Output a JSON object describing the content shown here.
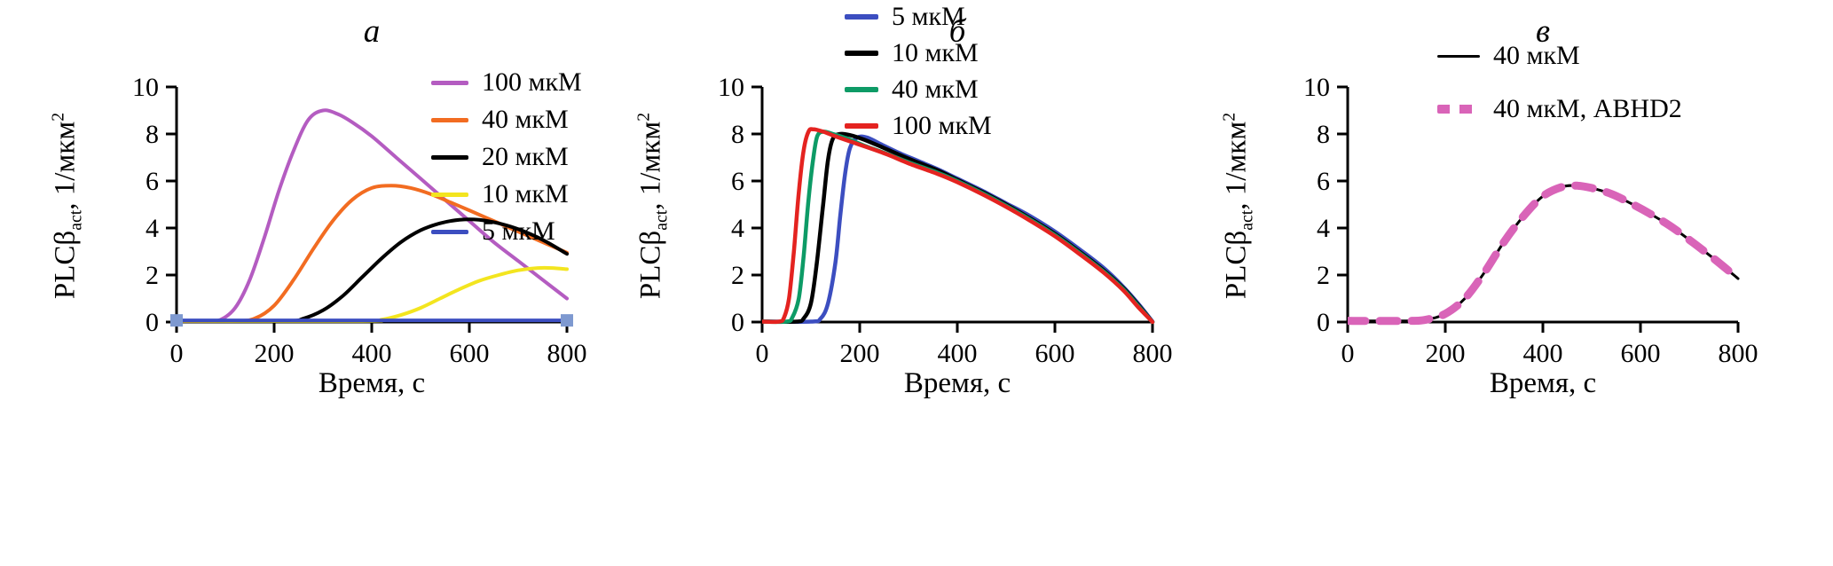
{
  "figure": {
    "background": "#ffffff",
    "xlabel": "Время, с",
    "ylabel_text": "PLCβact, 1/мкм²",
    "ylabel": {
      "pre": "PLCβ",
      "sub": "act",
      "mid": ", 1/мкм",
      "sup": "2"
    }
  },
  "chart_data": [
    {
      "type": "line",
      "panel_label": "а",
      "xlabel": "Время, с",
      "ylabel": "PLCβact, 1/мкм²",
      "xlim": [
        0,
        800
      ],
      "ylim": [
        0,
        10
      ],
      "xticks": [
        0,
        200,
        400,
        600,
        800
      ],
      "yticks": [
        0,
        2,
        4,
        6,
        8,
        10
      ],
      "grid": false,
      "legend_position": "top-right",
      "series": [
        {
          "name": "100 мкМ",
          "color": "#b45cc1",
          "width": 4,
          "legend_thickness": 5,
          "points": [
            [
              0,
              0.05
            ],
            [
              60,
              0.05
            ],
            [
              90,
              0.1
            ],
            [
              120,
              0.6
            ],
            [
              150,
              1.8
            ],
            [
              180,
              3.6
            ],
            [
              210,
              5.6
            ],
            [
              240,
              7.3
            ],
            [
              270,
              8.6
            ],
            [
              300,
              9.0
            ],
            [
              330,
              8.85
            ],
            [
              360,
              8.5
            ],
            [
              400,
              7.9
            ],
            [
              450,
              7.0
            ],
            [
              500,
              6.1
            ],
            [
              550,
              5.2
            ],
            [
              600,
              4.3
            ],
            [
              650,
              3.4
            ],
            [
              700,
              2.6
            ],
            [
              750,
              1.8
            ],
            [
              800,
              1.0
            ]
          ]
        },
        {
          "name": "40 мкМ",
          "color": "#f26c21",
          "width": 4,
          "legend_thickness": 5,
          "points": [
            [
              0,
              0.05
            ],
            [
              120,
              0.05
            ],
            [
              160,
              0.15
            ],
            [
              200,
              0.7
            ],
            [
              240,
              1.8
            ],
            [
              280,
              3.1
            ],
            [
              320,
              4.3
            ],
            [
              360,
              5.2
            ],
            [
              400,
              5.7
            ],
            [
              440,
              5.8
            ],
            [
              480,
              5.7
            ],
            [
              520,
              5.45
            ],
            [
              560,
              5.1
            ],
            [
              600,
              4.75
            ],
            [
              650,
              4.3
            ],
            [
              700,
              3.85
            ],
            [
              750,
              3.4
            ],
            [
              800,
              2.95
            ]
          ]
        },
        {
          "name": "20 мкМ",
          "color": "#000000",
          "width": 4,
          "legend_thickness": 5,
          "points": [
            [
              0,
              0.05
            ],
            [
              220,
              0.05
            ],
            [
              260,
              0.15
            ],
            [
              300,
              0.5
            ],
            [
              340,
              1.1
            ],
            [
              380,
              1.9
            ],
            [
              420,
              2.7
            ],
            [
              460,
              3.4
            ],
            [
              500,
              3.9
            ],
            [
              540,
              4.2
            ],
            [
              580,
              4.35
            ],
            [
              620,
              4.35
            ],
            [
              660,
              4.2
            ],
            [
              700,
              3.95
            ],
            [
              750,
              3.5
            ],
            [
              800,
              2.9
            ]
          ]
        },
        {
          "name": "10 мкМ",
          "color": "#f3e51f",
          "width": 4,
          "legend_thickness": 5,
          "points": [
            [
              0,
              0.05
            ],
            [
              380,
              0.05
            ],
            [
              420,
              0.1
            ],
            [
              460,
              0.3
            ],
            [
              500,
              0.6
            ],
            [
              540,
              1.0
            ],
            [
              580,
              1.4
            ],
            [
              620,
              1.75
            ],
            [
              660,
              2.0
            ],
            [
              700,
              2.2
            ],
            [
              740,
              2.3
            ],
            [
              770,
              2.3
            ],
            [
              800,
              2.25
            ]
          ]
        },
        {
          "name": "5 мкМ",
          "color": "#3c4ec0",
          "width": 4,
          "legend_thickness": 5,
          "points": [
            [
              0,
              0.07
            ],
            [
              200,
              0.07
            ],
            [
              400,
              0.07
            ],
            [
              600,
              0.07
            ],
            [
              800,
              0.07
            ]
          ],
          "endpoint_markers": {
            "color": "#7e99d0",
            "size": 14
          }
        }
      ]
    },
    {
      "type": "line",
      "panel_label": "б",
      "xlabel": "Время, с",
      "ylabel": "PLCβact, 1/мкм²",
      "xlim": [
        0,
        800
      ],
      "ylim": [
        0,
        10
      ],
      "xticks": [
        0,
        200,
        400,
        600,
        800
      ],
      "yticks": [
        0,
        2,
        4,
        6,
        8,
        10
      ],
      "grid": false,
      "legend_position": "top",
      "series": [
        {
          "name": "5 мкМ",
          "color": "#3c4ec0",
          "width": 4.5,
          "legend_thickness": 6,
          "points": [
            [
              0,
              0.02
            ],
            [
              100,
              0.02
            ],
            [
              120,
              0.15
            ],
            [
              135,
              0.8
            ],
            [
              150,
              2.5
            ],
            [
              160,
              4.5
            ],
            [
              170,
              6.3
            ],
            [
              180,
              7.4
            ],
            [
              195,
              7.85
            ],
            [
              215,
              7.85
            ],
            [
              240,
              7.6
            ],
            [
              280,
              7.2
            ],
            [
              320,
              6.85
            ],
            [
              360,
              6.5
            ],
            [
              400,
              6.1
            ],
            [
              450,
              5.6
            ],
            [
              500,
              5.05
            ],
            [
              550,
              4.5
            ],
            [
              600,
              3.85
            ],
            [
              650,
              3.1
            ],
            [
              700,
              2.3
            ],
            [
              740,
              1.5
            ],
            [
              770,
              0.8
            ],
            [
              800,
              0.02
            ]
          ]
        },
        {
          "name": "10 мкМ",
          "color": "#000000",
          "width": 4.5,
          "legend_thickness": 6,
          "points": [
            [
              0,
              0.02
            ],
            [
              70,
              0.02
            ],
            [
              85,
              0.15
            ],
            [
              100,
              0.8
            ],
            [
              112,
              2.5
            ],
            [
              125,
              5.0
            ],
            [
              135,
              6.9
            ],
            [
              145,
              7.8
            ],
            [
              160,
              8.0
            ],
            [
              180,
              7.95
            ],
            [
              210,
              7.75
            ],
            [
              250,
              7.4
            ],
            [
              300,
              6.95
            ],
            [
              360,
              6.45
            ],
            [
              400,
              6.05
            ],
            [
              450,
              5.55
            ],
            [
              500,
              5.0
            ],
            [
              550,
              4.4
            ],
            [
              600,
              3.75
            ],
            [
              650,
              3.0
            ],
            [
              700,
              2.2
            ],
            [
              740,
              1.45
            ],
            [
              770,
              0.75
            ],
            [
              800,
              0.0
            ]
          ]
        },
        {
          "name": "40 мкМ",
          "color": "#0d9b66",
          "width": 4.5,
          "legend_thickness": 6,
          "points": [
            [
              0,
              0.02
            ],
            [
              50,
              0.02
            ],
            [
              62,
              0.2
            ],
            [
              75,
              1.0
            ],
            [
              85,
              2.8
            ],
            [
              95,
              5.2
            ],
            [
              105,
              7.0
            ],
            [
              113,
              7.9
            ],
            [
              125,
              8.1
            ],
            [
              145,
              8.0
            ],
            [
              175,
              7.8
            ],
            [
              210,
              7.5
            ],
            [
              250,
              7.2
            ],
            [
              300,
              6.8
            ],
            [
              360,
              6.35
            ],
            [
              400,
              6.0
            ],
            [
              450,
              5.5
            ],
            [
              500,
              4.95
            ],
            [
              550,
              4.35
            ],
            [
              600,
              3.7
            ],
            [
              650,
              2.95
            ],
            [
              700,
              2.15
            ],
            [
              740,
              1.4
            ],
            [
              770,
              0.7
            ],
            [
              800,
              0.0
            ]
          ]
        },
        {
          "name": "100 мкМ",
          "color": "#e42320",
          "width": 4.5,
          "legend_thickness": 6,
          "points": [
            [
              0,
              0.02
            ],
            [
              35,
              0.02
            ],
            [
              45,
              0.2
            ],
            [
              55,
              1.0
            ],
            [
              65,
              3.0
            ],
            [
              75,
              5.5
            ],
            [
              85,
              7.3
            ],
            [
              95,
              8.1
            ],
            [
              105,
              8.2
            ],
            [
              125,
              8.1
            ],
            [
              150,
              7.9
            ],
            [
              185,
              7.65
            ],
            [
              220,
              7.4
            ],
            [
              260,
              7.1
            ],
            [
              300,
              6.75
            ],
            [
              360,
              6.3
            ],
            [
              400,
              5.95
            ],
            [
              450,
              5.45
            ],
            [
              500,
              4.9
            ],
            [
              550,
              4.3
            ],
            [
              600,
              3.65
            ],
            [
              650,
              2.9
            ],
            [
              700,
              2.1
            ],
            [
              740,
              1.35
            ],
            [
              770,
              0.65
            ],
            [
              800,
              0.0
            ]
          ]
        }
      ]
    },
    {
      "type": "line",
      "panel_label": "в",
      "xlabel": "Время, с",
      "ylabel": "PLCβact, 1/мкм²",
      "xlim": [
        0,
        800
      ],
      "ylim": [
        0,
        10
      ],
      "xticks": [
        0,
        200,
        400,
        600,
        800
      ],
      "yticks": [
        0,
        2,
        4,
        6,
        8,
        10
      ],
      "grid": false,
      "legend_position": "top-right",
      "series": [
        {
          "name": "40 мкМ",
          "color": "#000000",
          "width": 3,
          "legend_thickness": 3,
          "points": [
            [
              0,
              0.05
            ],
            [
              120,
              0.05
            ],
            [
              160,
              0.1
            ],
            [
              200,
              0.35
            ],
            [
              240,
              1.0
            ],
            [
              280,
              2.1
            ],
            [
              320,
              3.4
            ],
            [
              360,
              4.5
            ],
            [
              400,
              5.35
            ],
            [
              440,
              5.75
            ],
            [
              470,
              5.8
            ],
            [
              500,
              5.7
            ],
            [
              540,
              5.45
            ],
            [
              580,
              5.05
            ],
            [
              620,
              4.6
            ],
            [
              660,
              4.1
            ],
            [
              700,
              3.5
            ],
            [
              750,
              2.7
            ],
            [
              800,
              1.85
            ]
          ]
        },
        {
          "name": "40 мкМ, ABHD2",
          "color": "#d964b8",
          "width": 9,
          "legend_thickness": 10,
          "dash": [
            20,
            16
          ],
          "points": [
            [
              0,
              0.05
            ],
            [
              120,
              0.05
            ],
            [
              160,
              0.1
            ],
            [
              200,
              0.35
            ],
            [
              240,
              1.0
            ],
            [
              280,
              2.1
            ],
            [
              320,
              3.4
            ],
            [
              360,
              4.5
            ],
            [
              400,
              5.35
            ],
            [
              440,
              5.75
            ],
            [
              470,
              5.8
            ],
            [
              500,
              5.7
            ],
            [
              540,
              5.45
            ],
            [
              580,
              5.05
            ],
            [
              620,
              4.6
            ],
            [
              660,
              4.1
            ],
            [
              700,
              3.5
            ],
            [
              750,
              2.7
            ],
            [
              800,
              1.85
            ]
          ]
        }
      ]
    }
  ]
}
